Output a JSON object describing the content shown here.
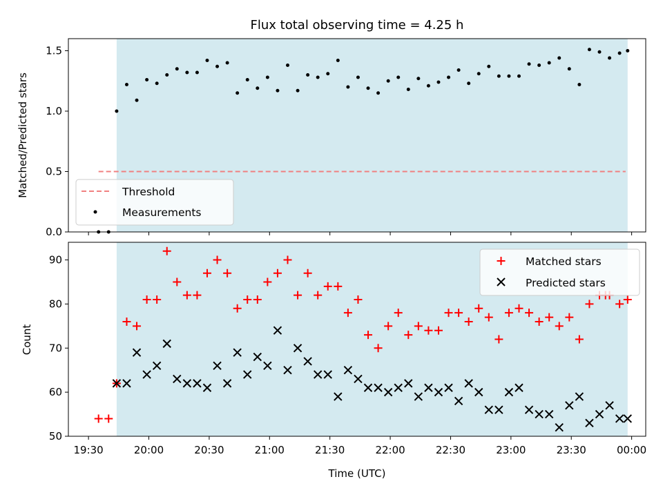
{
  "colors": {
    "observing_window": "#d4eaf0",
    "threshold": "#f08080",
    "measurements": "#000000",
    "matched": "#ff0000",
    "predicted": "#000000"
  },
  "chart_data": [
    {
      "type": "scatter",
      "title": "Flux total observing time = 4.25 h",
      "xlabel": "",
      "ylabel": "Matched/Predicted stars",
      "ylim": [
        0,
        1.6
      ],
      "yticks": [
        "0.0",
        "0.5",
        "1.0",
        "1.5"
      ],
      "xlim": [
        "19:20",
        "00:07"
      ],
      "grid": false,
      "legend_position": "lower-left",
      "observing_window": [
        "19:44",
        "23:58"
      ],
      "series": [
        {
          "name": "Threshold",
          "style": "dashed-line",
          "x": [
            "19:35",
            "23:57"
          ],
          "y": [
            0.5,
            0.5
          ]
        },
        {
          "name": "Measurements",
          "style": "dots",
          "x": [
            "19:35",
            "19:40",
            "19:44",
            "19:49",
            "19:54",
            "19:59",
            "20:04",
            "20:09",
            "20:14",
            "20:19",
            "20:24",
            "20:29",
            "20:34",
            "20:39",
            "20:44",
            "20:49",
            "20:54",
            "20:59",
            "21:04",
            "21:09",
            "21:14",
            "21:19",
            "21:24",
            "21:29",
            "21:34",
            "21:39",
            "21:44",
            "21:49",
            "21:54",
            "21:59",
            "22:04",
            "22:09",
            "22:14",
            "22:19",
            "22:24",
            "22:29",
            "22:34",
            "22:39",
            "22:44",
            "22:49",
            "22:54",
            "22:59",
            "23:04",
            "23:09",
            "23:14",
            "23:19",
            "23:24",
            "23:29",
            "23:34",
            "23:39",
            "23:44",
            "23:49",
            "23:54",
            "23:58"
          ],
          "y": [
            0.0,
            0.0,
            1.0,
            1.22,
            1.09,
            1.26,
            1.23,
            1.3,
            1.35,
            1.32,
            1.32,
            1.42,
            1.37,
            1.4,
            1.15,
            1.26,
            1.19,
            1.28,
            1.17,
            1.38,
            1.17,
            1.3,
            1.28,
            1.31,
            1.42,
            1.2,
            1.28,
            1.19,
            1.15,
            1.25,
            1.28,
            1.18,
            1.27,
            1.21,
            1.24,
            1.28,
            1.34,
            1.23,
            1.31,
            1.37,
            1.29,
            1.29,
            1.29,
            1.39,
            1.38,
            1.4,
            1.44,
            1.35,
            1.22,
            1.51,
            1.49,
            1.44,
            1.48,
            1.5
          ]
        }
      ]
    },
    {
      "type": "scatter",
      "title": "",
      "xlabel": "Time (UTC)",
      "ylabel": "Count",
      "ylim": [
        50,
        94
      ],
      "yticks": [
        "50",
        "60",
        "70",
        "80",
        "90"
      ],
      "xticks": [
        "19:30",
        "20:00",
        "20:30",
        "21:00",
        "21:30",
        "22:00",
        "22:30",
        "23:00",
        "23:30",
        "00:00"
      ],
      "xlim": [
        "19:20",
        "00:07"
      ],
      "grid": false,
      "legend_position": "upper-right",
      "observing_window": [
        "19:44",
        "23:58"
      ],
      "series": [
        {
          "name": "Matched stars",
          "marker": "+",
          "x": [
            "19:35",
            "19:40",
            "19:44",
            "19:49",
            "19:54",
            "19:59",
            "20:04",
            "20:09",
            "20:14",
            "20:19",
            "20:24",
            "20:29",
            "20:34",
            "20:39",
            "20:44",
            "20:49",
            "20:54",
            "20:59",
            "21:04",
            "21:09",
            "21:14",
            "21:19",
            "21:24",
            "21:29",
            "21:34",
            "21:39",
            "21:44",
            "21:49",
            "21:54",
            "21:59",
            "22:04",
            "22:09",
            "22:14",
            "22:19",
            "22:24",
            "22:29",
            "22:34",
            "22:39",
            "22:44",
            "22:49",
            "22:54",
            "22:59",
            "23:04",
            "23:09",
            "23:14",
            "23:19",
            "23:24",
            "23:29",
            "23:34",
            "23:39",
            "23:44",
            "23:47",
            "23:49",
            "23:54",
            "23:58"
          ],
          "y": [
            54,
            54,
            62,
            76,
            75,
            81,
            81,
            92,
            85,
            82,
            82,
            87,
            90,
            87,
            79,
            81,
            81,
            85,
            87,
            90,
            82,
            87,
            82,
            84,
            84,
            78,
            81,
            73,
            70,
            75,
            78,
            73,
            75,
            74,
            74,
            78,
            78,
            76,
            79,
            77,
            72,
            78,
            79,
            78,
            76,
            77,
            75,
            77,
            72,
            80,
            82,
            82,
            82,
            80,
            81
          ]
        },
        {
          "name": "Predicted stars",
          "marker": "x",
          "x": [
            "19:44",
            "19:49",
            "19:54",
            "19:59",
            "20:04",
            "20:09",
            "20:14",
            "20:19",
            "20:24",
            "20:29",
            "20:34",
            "20:39",
            "20:44",
            "20:49",
            "20:54",
            "20:59",
            "21:04",
            "21:09",
            "21:14",
            "21:19",
            "21:24",
            "21:29",
            "21:34",
            "21:39",
            "21:44",
            "21:49",
            "21:54",
            "21:59",
            "22:04",
            "22:09",
            "22:14",
            "22:19",
            "22:24",
            "22:29",
            "22:34",
            "22:39",
            "22:44",
            "22:49",
            "22:54",
            "22:59",
            "23:04",
            "23:09",
            "23:14",
            "23:19",
            "23:24",
            "23:29",
            "23:34",
            "23:39",
            "23:44",
            "23:49",
            "23:54",
            "23:58"
          ],
          "y": [
            62,
            62,
            69,
            64,
            66,
            71,
            63,
            62,
            62,
            61,
            66,
            62,
            69,
            64,
            68,
            66,
            74,
            65,
            70,
            67,
            64,
            64,
            59,
            65,
            63,
            61,
            61,
            60,
            61,
            62,
            59,
            61,
            60,
            61,
            58,
            62,
            60,
            56,
            56,
            60,
            61,
            56,
            55,
            55,
            52,
            57,
            59,
            53,
            55,
            57,
            54,
            54
          ]
        }
      ]
    }
  ]
}
